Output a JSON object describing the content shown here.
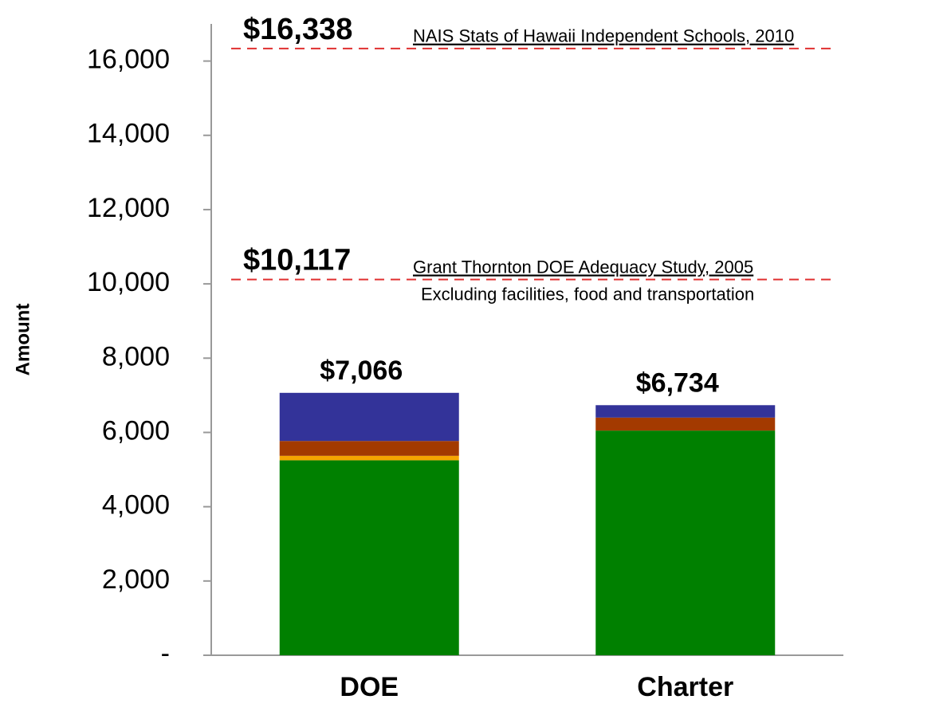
{
  "chart_data": {
    "type": "stacked-bar",
    "y_label": "Amount",
    "categories": [
      "DOE",
      "Charter"
    ],
    "series": [
      {
        "color": "#008000",
        "values": [
          5250,
          6050
        ]
      },
      {
        "color": "#f5a500",
        "values": [
          120,
          0
        ]
      },
      {
        "color": "#a33a00",
        "values": [
          400,
          350
        ]
      },
      {
        "color": "#333399",
        "values": [
          1296,
          334
        ]
      }
    ],
    "totals": [
      7066,
      6734
    ],
    "total_labels": [
      "$7,066",
      "$6,734"
    ],
    "ylim": [
      0,
      17000
    ],
    "yticks": [
      {
        "value": 0,
        "label": "-"
      },
      {
        "value": 2000,
        "label": "2,000"
      },
      {
        "value": 4000,
        "label": "4,000"
      },
      {
        "value": 6000,
        "label": "6,000"
      },
      {
        "value": 8000,
        "label": "8,000"
      },
      {
        "value": 10000,
        "label": "10,000"
      },
      {
        "value": 12000,
        "label": "12,000"
      },
      {
        "value": 14000,
        "label": "14,000"
      },
      {
        "value": 16000,
        "label": "16,000"
      }
    ],
    "reference_lines": [
      {
        "value": 16338,
        "label": "$16,338",
        "source": "NAIS Stats of Hawaii Independent Schools, 2010",
        "color": "#e03030"
      },
      {
        "value": 10117,
        "label": "$10,117",
        "source": "Grant Thornton DOE Adequacy Study, 2005",
        "note": "Excluding facilities, food and transportation",
        "color": "#e03030"
      }
    ]
  }
}
